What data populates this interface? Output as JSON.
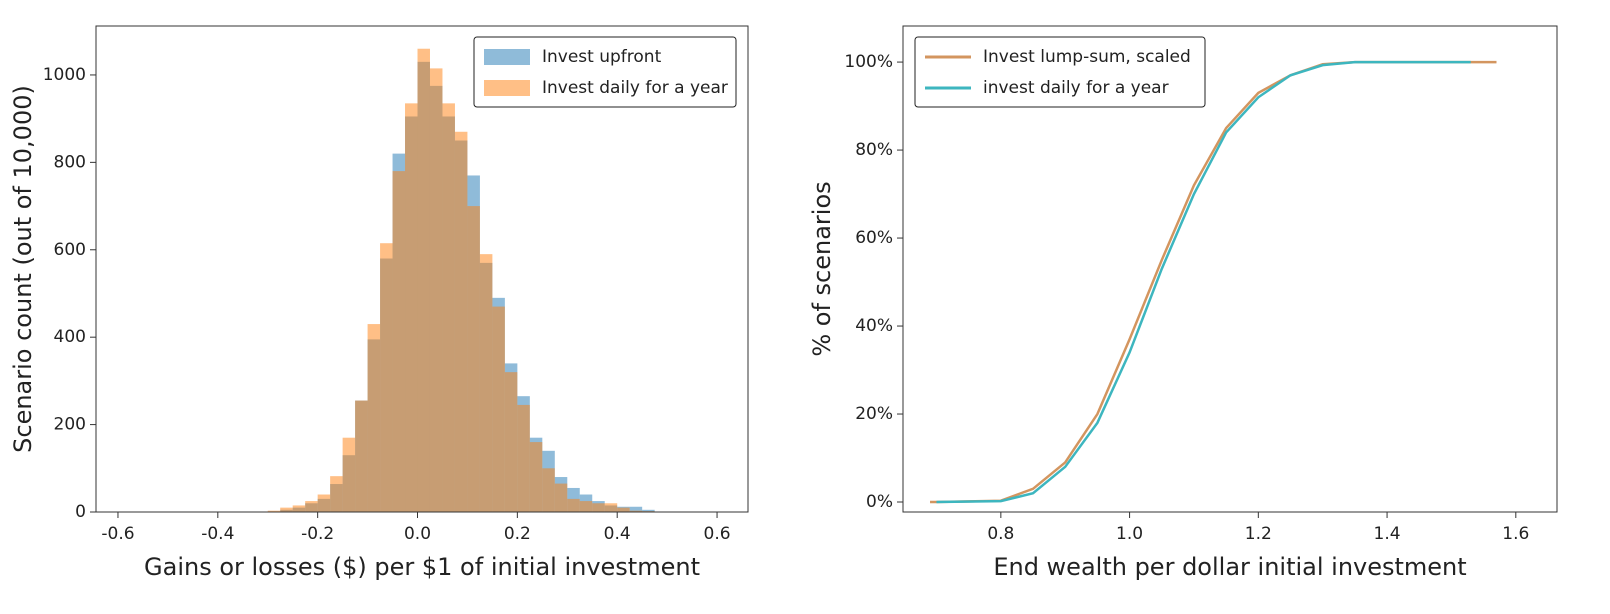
{
  "chart_data": [
    {
      "type": "histogram",
      "x_label": "Gains or losses ($) per $1 of initial investment",
      "y_label": "Scenario count (out of 10,000)",
      "bins": [
        -0.3,
        -0.275,
        -0.25,
        -0.225,
        -0.2,
        -0.175,
        -0.15,
        -0.125,
        -0.1,
        -0.075,
        -0.05,
        -0.025,
        0,
        0.025,
        0.05,
        0.075,
        0.1,
        0.125,
        0.15,
        0.175,
        0.2,
        0.225,
        0.25,
        0.275,
        0.3,
        0.325,
        0.35,
        0.375,
        0.4,
        0.425,
        0.45,
        0.475
      ],
      "series": [
        {
          "name": "Invest upfront",
          "color": "#1f77b4",
          "values": [
            1,
            5,
            10,
            20,
            30,
            64,
            130,
            255,
            395,
            580,
            820,
            905,
            1030,
            975,
            905,
            850,
            770,
            570,
            490,
            340,
            265,
            170,
            140,
            80,
            55,
            40,
            25,
            15,
            12,
            12,
            5
          ]
        },
        {
          "name": "Invest daily for a year",
          "color": "#ff7f0e",
          "values": [
            3,
            10,
            15,
            25,
            40,
            82,
            170,
            255,
            430,
            615,
            780,
            935,
            1060,
            1015,
            935,
            870,
            700,
            590,
            470,
            320,
            245,
            160,
            100,
            65,
            30,
            25,
            20,
            20,
            10,
            3,
            2
          ]
        }
      ],
      "xlim": [
        -0.644,
        0.662
      ],
      "xticks": [
        -0.6,
        -0.4,
        -0.2,
        {
          "value": 0,
          "label": "0.0"
        },
        0.2,
        0.4,
        0.6
      ],
      "ylim": [
        0,
        1112
      ],
      "yticks": [
        0,
        200,
        400,
        600,
        800,
        1000
      ],
      "legend": "upper right"
    },
    {
      "type": "line",
      "x_label": "End wealth per dollar initial investment",
      "y_label": "% of scenarios",
      "x": [
        0.69,
        0.7,
        0.8,
        0.85,
        0.9,
        0.95,
        1.0,
        1.05,
        1.1,
        1.15,
        1.2,
        1.25,
        1.3,
        1.35,
        1.4,
        1.53,
        1.57
      ],
      "series": [
        {
          "name": "Invest lump-sum, scaled",
          "color": "#d3955f",
          "values": [
            0,
            0,
            0.3,
            3,
            9,
            20,
            37,
            55,
            72,
            85,
            93,
            97,
            99.5,
            100,
            100,
            100,
            100
          ]
        },
        {
          "name": "invest daily for a year",
          "color": "#3db6bf",
          "values": [
            null,
            0,
            0.2,
            2,
            8,
            18,
            34,
            53,
            70,
            84,
            92,
            97,
            99.3,
            100,
            100,
            100,
            null
          ]
        }
      ],
      "xlim": [
        0.648,
        1.664
      ],
      "xticks": [
        0.8,
        {
          "value": 1,
          "label": "1.0"
        },
        1.2,
        1.4,
        1.6
      ],
      "ylim": [
        -2.27,
        108.2
      ],
      "yticks": [
        {
          "value": 0,
          "label": "0%"
        },
        {
          "value": 20,
          "label": "20%"
        },
        {
          "value": 40,
          "label": "40%"
        },
        {
          "value": 60,
          "label": "60%"
        },
        {
          "value": 80,
          "label": "80%"
        },
        {
          "value": 100,
          "label": "100%"
        }
      ],
      "legend": "upper left"
    }
  ]
}
